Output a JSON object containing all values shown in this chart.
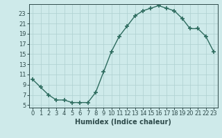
{
  "x": [
    0,
    1,
    2,
    3,
    4,
    5,
    6,
    7,
    8,
    9,
    10,
    11,
    12,
    13,
    14,
    15,
    16,
    17,
    18,
    19,
    20,
    21,
    22,
    23
  ],
  "y": [
    10,
    8.5,
    7,
    6,
    6,
    5.5,
    5.5,
    5.5,
    7.5,
    11.5,
    15.5,
    18.5,
    20.5,
    22.5,
    23.5,
    24,
    24.5,
    24,
    23.5,
    22,
    20,
    20,
    18.5,
    15.5
  ],
  "line_color": "#2d6b5e",
  "marker": "+",
  "markersize": 4,
  "markeredgewidth": 1.2,
  "linewidth": 1.0,
  "xlabel": "Humidex (Indice chaleur)",
  "xlim": [
    -0.5,
    23.5
  ],
  "ylim": [
    4.5,
    24.8
  ],
  "yticks": [
    5,
    7,
    9,
    11,
    13,
    15,
    17,
    19,
    21,
    23
  ],
  "xticks": [
    0,
    1,
    2,
    3,
    4,
    5,
    6,
    7,
    8,
    9,
    10,
    11,
    12,
    13,
    14,
    15,
    16,
    17,
    18,
    19,
    20,
    21,
    22,
    23
  ],
  "bg_color": "#ceeaea",
  "grid_color": "#aed0d0",
  "font_color": "#2d4a4a",
  "xlabel_fontsize": 7,
  "tick_fontsize": 6
}
